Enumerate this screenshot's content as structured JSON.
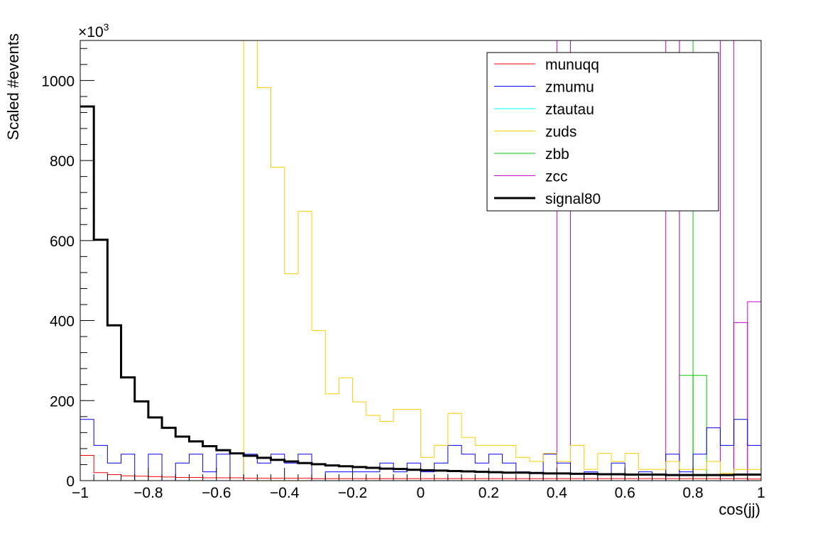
{
  "chart_data": {
    "type": "line",
    "title": "",
    "xlabel": "cos(jj)",
    "ylabel": "Scaled #events",
    "y_exponent_label": "×10",
    "y_exponent_power": "3",
    "xlim": [
      -1,
      1
    ],
    "ylim": [
      0,
      1100
    ],
    "x_ticks": [
      -1,
      -0.8,
      -0.6,
      -0.4,
      -0.2,
      0,
      0.2,
      0.4,
      0.6,
      0.8,
      1
    ],
    "x_tick_labels": [
      "−1",
      "−0.8",
      "−0.6",
      "−0.4",
      "−0.2",
      "0",
      "0.2",
      "0.4",
      "0.6",
      "0.8",
      "1"
    ],
    "y_ticks": [
      0,
      200,
      400,
      600,
      800,
      1000
    ],
    "y_tick_labels": [
      "0",
      "200",
      "400",
      "600",
      "800",
      "1000"
    ],
    "bins": 50,
    "legend_position": "top-right",
    "series": [
      {
        "name": "munuqq",
        "color": "#ff0000",
        "width": 1,
        "values": [
          63,
          20,
          15,
          12,
          11,
          10,
          9,
          8,
          8,
          7,
          7,
          7,
          6,
          6,
          6,
          6,
          6,
          5,
          5,
          5,
          5,
          5,
          5,
          5,
          5,
          5,
          5,
          5,
          5,
          5,
          5,
          5,
          5,
          5,
          5,
          5,
          5,
          5,
          5,
          5,
          5,
          5,
          5,
          5,
          5,
          5,
          5,
          5,
          5,
          4
        ]
      },
      {
        "name": "zmumu",
        "color": "#0000ff",
        "width": 1,
        "values": [
          153,
          88,
          44,
          66,
          0,
          66,
          0,
          44,
          66,
          22,
          66,
          0,
          66,
          44,
          66,
          44,
          66,
          0,
          22,
          22,
          22,
          22,
          44,
          22,
          44,
          22,
          44,
          88,
          66,
          44,
          66,
          44,
          22,
          0,
          66,
          44,
          0,
          22,
          0,
          44,
          0,
          22,
          0,
          66,
          22,
          66,
          132,
          88,
          153,
          88
        ]
      },
      {
        "name": "ztautau",
        "color": "#00ffff",
        "width": 1,
        "values": [
          0,
          0,
          0,
          0,
          0,
          0,
          0,
          0,
          0,
          0,
          0,
          0,
          0,
          0,
          0,
          0,
          0,
          0,
          0,
          0,
          0,
          0,
          0,
          0,
          0,
          0,
          0,
          0,
          0,
          0,
          0,
          0,
          0,
          0,
          0,
          0,
          0,
          0,
          0,
          0,
          0,
          0,
          0,
          0,
          0,
          0,
          0,
          0,
          0,
          0
        ]
      },
      {
        "name": "zuds",
        "color": "#ffcc00",
        "width": 1,
        "values": [
          0,
          0,
          0,
          0,
          0,
          0,
          0,
          0,
          0,
          0,
          0,
          0,
          1100,
          982,
          783,
          517,
          673,
          375,
          217,
          257,
          197,
          163,
          148,
          178,
          178,
          58,
          88,
          168,
          108,
          88,
          88,
          88,
          58,
          48,
          68,
          48,
          88,
          28,
          68,
          48,
          68,
          28,
          28,
          48,
          28,
          28,
          48,
          18,
          28,
          28
        ]
      },
      {
        "name": "zbb",
        "color": "#00cc00",
        "width": 1,
        "values": [
          0,
          0,
          0,
          0,
          0,
          0,
          0,
          0,
          0,
          0,
          0,
          0,
          0,
          0,
          0,
          0,
          0,
          0,
          0,
          0,
          0,
          0,
          0,
          0,
          0,
          0,
          0,
          0,
          0,
          0,
          0,
          0,
          0,
          0,
          0,
          0,
          0,
          0,
          0,
          0,
          0,
          0,
          0,
          0,
          0,
          0,
          0,
          0,
          0,
          0
        ]
      },
      {
        "name": "zcc",
        "color": "#cc00cc",
        "width": 1,
        "values": [
          0,
          0,
          0,
          0,
          0,
          0,
          0,
          0,
          0,
          0,
          0,
          0,
          0,
          0,
          0,
          0,
          0,
          0,
          0,
          0,
          0,
          0,
          0,
          0,
          0,
          0,
          0,
          0,
          0,
          0,
          0,
          0,
          0,
          0,
          0,
          0,
          0,
          0,
          0,
          0,
          0,
          0,
          0,
          0,
          0,
          0,
          0,
          0,
          0,
          0
        ]
      },
      {
        "name": "signal80",
        "color": "#000000",
        "width": 3,
        "values": [
          935,
          602,
          388,
          258,
          198,
          158,
          132,
          110,
          98,
          86,
          76,
          68,
          62,
          57,
          52,
          48,
          44,
          41,
          38,
          36,
          34,
          32,
          30,
          29,
          27,
          26,
          25,
          24,
          23,
          22,
          21,
          20,
          20,
          19,
          18,
          18,
          17,
          17,
          16,
          16,
          15,
          15,
          15,
          14,
          14,
          14,
          14,
          14,
          15,
          15
        ]
      }
    ],
    "overflow_bars": [
      {
        "series": "zbb",
        "color": "#00cc00",
        "bins": [
          [
            44,
            263
          ],
          [
            45,
            263
          ]
        ],
        "clipped_bins": [
          44,
          45
        ]
      },
      {
        "series": "zcc",
        "color": "#cc00cc",
        "bins": [
          [
            48,
            395
          ],
          [
            49,
            447
          ]
        ],
        "clipped_bins": [
          35,
          36,
          43,
          44,
          47,
          48
        ]
      }
    ]
  }
}
